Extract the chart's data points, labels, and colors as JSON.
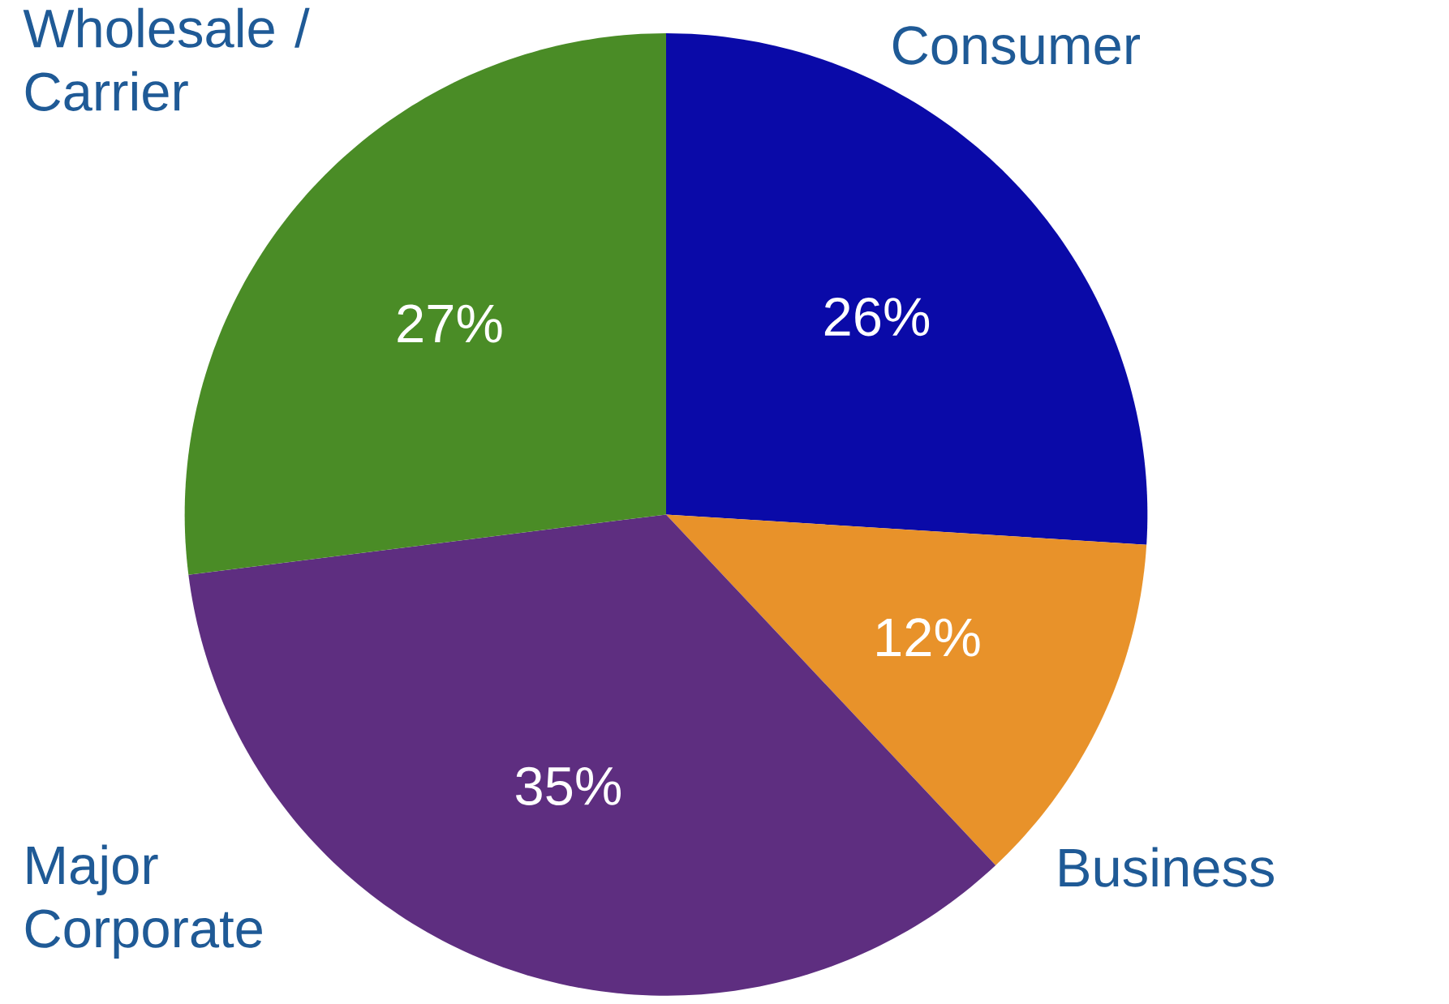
{
  "chart_data": {
    "type": "pie",
    "categories": [
      "Consumer",
      "Business",
      "Major Corporate",
      "Wholesale / Carrier"
    ],
    "values": [
      26,
      12,
      35,
      27
    ],
    "colors": [
      "#0a0aa8",
      "#e8922a",
      "#5e2e80",
      "#4a8c26"
    ],
    "value_labels": [
      "26%",
      "12%",
      "35%",
      "27%"
    ]
  }
}
